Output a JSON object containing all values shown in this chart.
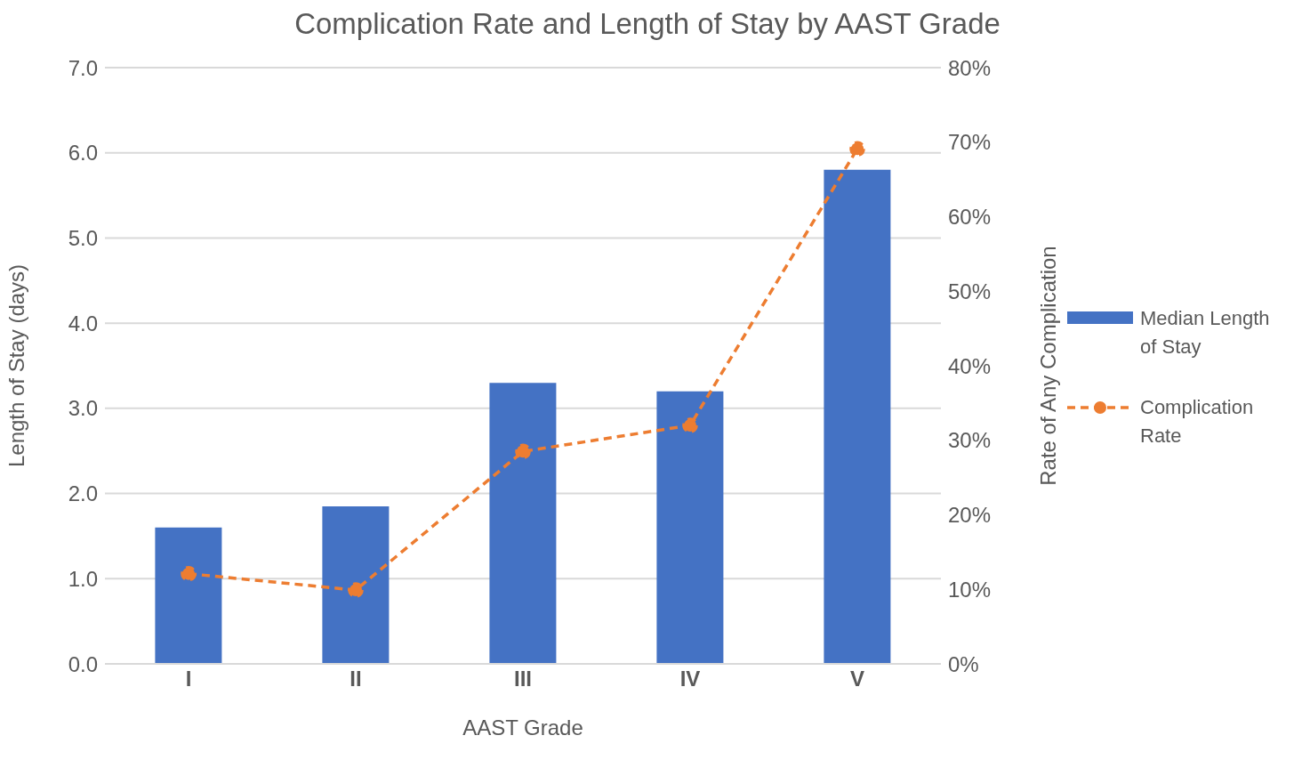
{
  "chart_data": {
    "type": "bar",
    "title": "Complication Rate and Length of Stay by AAST Grade",
    "xlabel": "AAST Grade",
    "ylabel": "Length of Stay (days)",
    "y2label": "Rate of Any Complication",
    "categories": [
      "I",
      "II",
      "III",
      "IV",
      "V"
    ],
    "series": [
      {
        "name": "Median Length of Stay",
        "color": "#4472c4",
        "values": [
          1.6,
          1.85,
          3.3,
          3.2,
          5.8
        ]
      },
      {
        "name": "Complication Rate",
        "type": "line",
        "axis": "y2",
        "color": "#ed7d31",
        "values": [
          12.1,
          9.9,
          28.5,
          32,
          69.1
        ],
        "marker": "circle",
        "line_style": "dashed"
      }
    ],
    "ylim": [
      0,
      7
    ],
    "yticks": [
      {
        "value": 0,
        "label": "0.0"
      },
      {
        "value": 1,
        "label": "1.0"
      },
      {
        "value": 2,
        "label": "2.0"
      },
      {
        "value": 3,
        "label": "3.0"
      },
      {
        "value": 4,
        "label": "4.0"
      },
      {
        "value": 5,
        "label": "5.0"
      },
      {
        "value": 6,
        "label": "6.0"
      },
      {
        "value": 7,
        "label": "7.0"
      }
    ],
    "y2lim": [
      0,
      80
    ],
    "y2ticks": [
      {
        "value": 0,
        "label": "0%"
      },
      {
        "value": 10,
        "label": "10%"
      },
      {
        "value": 20,
        "label": "20%"
      },
      {
        "value": 30,
        "label": "30%"
      },
      {
        "value": 40,
        "label": "40%"
      },
      {
        "value": 50,
        "label": "50%"
      },
      {
        "value": 60,
        "label": "60%"
      },
      {
        "value": 70,
        "label": "70%"
      },
      {
        "value": 80,
        "label": "80%"
      }
    ],
    "grid": "y",
    "legend": "right"
  }
}
